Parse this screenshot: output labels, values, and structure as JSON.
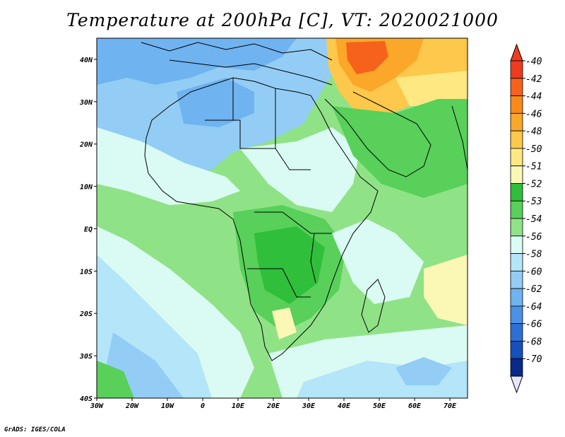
{
  "title": "Temperature at 200hPa [C], VT: 2020021000",
  "credit": "GrADS: IGES/COLA",
  "map": {
    "projection": "latlon",
    "lon_range": [
      -30,
      75
    ],
    "lat_range": [
      -40,
      45
    ],
    "lon_ticks": [
      {
        "value": -30,
        "label": "30W"
      },
      {
        "value": -20,
        "label": "20W"
      },
      {
        "value": -10,
        "label": "10W"
      },
      {
        "value": 0,
        "label": "0"
      },
      {
        "value": 10,
        "label": "10E"
      },
      {
        "value": 20,
        "label": "20E"
      },
      {
        "value": 30,
        "label": "30E"
      },
      {
        "value": 40,
        "label": "40E"
      },
      {
        "value": 50,
        "label": "50E"
      },
      {
        "value": 60,
        "label": "60E"
      },
      {
        "value": 70,
        "label": "70E"
      }
    ],
    "lat_ticks": [
      {
        "value": 40,
        "label": "40N"
      },
      {
        "value": 30,
        "label": "30N"
      },
      {
        "value": 20,
        "label": "20N"
      },
      {
        "value": 10,
        "label": "10N"
      },
      {
        "value": 0,
        "label": "EQ"
      },
      {
        "value": -10,
        "label": "10S"
      },
      {
        "value": -20,
        "label": "20S"
      },
      {
        "value": -30,
        "label": "30S"
      },
      {
        "value": -40,
        "label": "40S"
      }
    ]
  },
  "colorbar": {
    "levels": [
      {
        "label": "-40",
        "color": "#ef3b1f"
      },
      {
        "label": "-42",
        "color": "#f6621c"
      },
      {
        "label": "-44",
        "color": "#f98a1a"
      },
      {
        "label": "-46",
        "color": "#fba72a"
      },
      {
        "label": "-48",
        "color": "#fdc84b"
      },
      {
        "label": "-50",
        "color": "#fde882"
      },
      {
        "label": "-51",
        "color": "#fbf7b4"
      },
      {
        "label": "-52",
        "color": "#2fbf3b"
      },
      {
        "label": "-53",
        "color": "#58d05a"
      },
      {
        "label": "-54",
        "color": "#90e287"
      },
      {
        "label": "-56",
        "color": "#dafbf3"
      },
      {
        "label": "-58",
        "color": "#b4e5f9"
      },
      {
        "label": "-60",
        "color": "#93cdf5"
      },
      {
        "label": "-62",
        "color": "#6fb3f0"
      },
      {
        "label": "-64",
        "color": "#4b92e5"
      },
      {
        "label": "-66",
        "color": "#2c70d6"
      },
      {
        "label": "-68",
        "color": "#1550bb"
      },
      {
        "label": "-70",
        "color": "#0a2a8a"
      }
    ],
    "bottom_arrow_color": "#e8e6ff"
  }
}
